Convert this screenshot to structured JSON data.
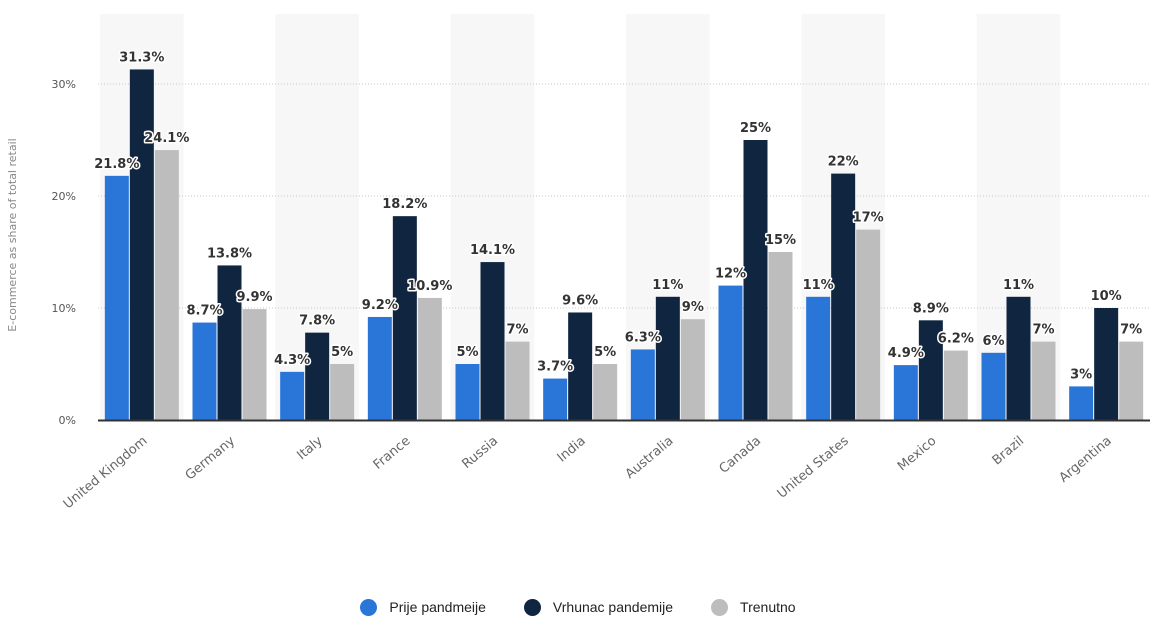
{
  "chart_data": {
    "type": "bar",
    "title": "",
    "xlabel": "",
    "ylabel": "E-commerce as share of total retail",
    "ylim": [
      0,
      35
    ],
    "yticks": [
      "0%",
      "10%",
      "20%",
      "30%"
    ],
    "ytick_values": [
      0,
      10,
      20,
      30
    ],
    "grid": true,
    "legend_position": "bottom",
    "categories": [
      "United Kingdom",
      "Germany",
      "Italy",
      "France",
      "Russia",
      "India",
      "Australia",
      "Canada",
      "United States",
      "Mexico",
      "Brazil",
      "Argentina"
    ],
    "series": [
      {
        "name": "Prije pandmeije",
        "color": "#2a75d8",
        "values": [
          21.8,
          8.7,
          4.3,
          9.2,
          5,
          3.7,
          6.3,
          12,
          11,
          4.9,
          6,
          3
        ],
        "labels": [
          "21.8%",
          "8.7%",
          "4.3%",
          "9.2%",
          "5%",
          "3.7%",
          "6.3%",
          "12%",
          "11%",
          "4.9%",
          "6%",
          "3%"
        ]
      },
      {
        "name": "Vrhunac pandemije",
        "color": "#0f2540",
        "values": [
          31.3,
          13.8,
          7.8,
          18.2,
          14.1,
          9.6,
          11,
          25,
          22,
          8.9,
          11,
          10
        ],
        "labels": [
          "31.3%",
          "13.8%",
          "7.8%",
          "18.2%",
          "14.1%",
          "9.6%",
          "11%",
          "25%",
          "22%",
          "8.9%",
          "11%",
          "10%"
        ]
      },
      {
        "name": "Trenutno",
        "color": "#bdbdbd",
        "values": [
          24.1,
          9.9,
          5,
          10.9,
          7,
          5,
          9,
          15,
          17,
          6.2,
          7,
          7
        ],
        "labels": [
          "24.1%",
          "9.9%",
          "5%",
          "10.9%",
          "7%",
          "5%",
          "9%",
          "15%",
          "17%",
          "6.2%",
          "7%",
          "7%"
        ]
      }
    ]
  },
  "colors": {
    "band": "#f7f7f7",
    "grid": "#c8c8c8",
    "axis": "#333333"
  }
}
